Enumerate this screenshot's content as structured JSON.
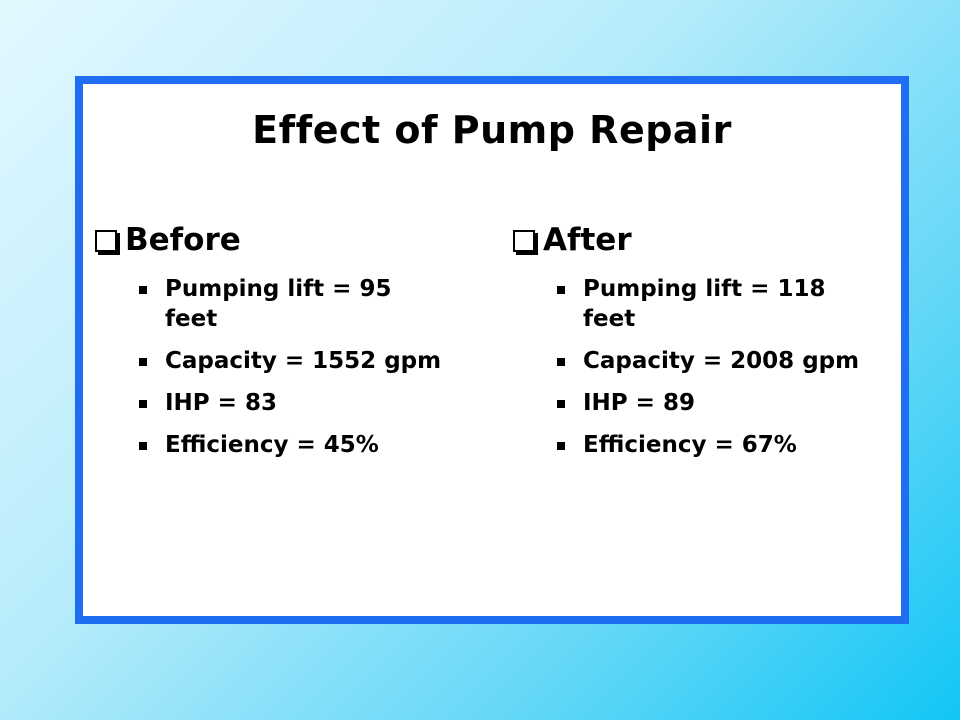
{
  "slide": {
    "title": "Effect of Pump Repair",
    "columns": [
      {
        "heading": "Before",
        "items": [
          "Pumping lift = 95 feet",
          "Capacity = 1552 gpm",
          "IHP = 83",
          "Efficiency = 45%"
        ]
      },
      {
        "heading": "After",
        "items": [
          "Pumping lift = 118 feet",
          "Capacity = 2008 gpm",
          "IHP = 89",
          "Efficiency = 67%"
        ]
      }
    ]
  },
  "icons": {
    "heading_bullet": "checkbox-square-icon",
    "item_bullet": "square-bullet-icon"
  },
  "colors": {
    "frame_border": "#1f6ef2",
    "background_light": "#e3f8ff",
    "background_dark": "#12c6f6"
  }
}
